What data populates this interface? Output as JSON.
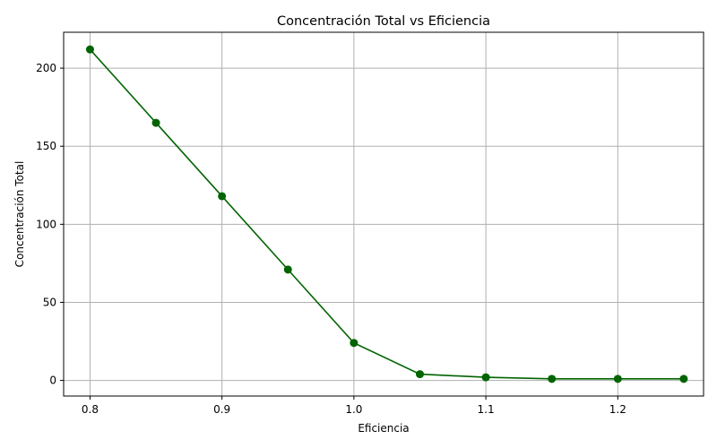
{
  "chart_data": {
    "type": "line",
    "title": "Concentración Total vs Eficiencia",
    "xlabel": "Eficiencia",
    "ylabel": "Concentración Total",
    "xlim": [
      0.78,
      1.265
    ],
    "ylim": [
      -10,
      223
    ],
    "xticks": [
      0.8,
      0.9,
      1.0,
      1.1,
      1.2
    ],
    "xtick_labels": [
      "0.8",
      "0.9",
      "1.0",
      "1.1",
      "1.2"
    ],
    "yticks": [
      0,
      50,
      100,
      150,
      200
    ],
    "ytick_labels": [
      "0",
      "50",
      "100",
      "150",
      "200"
    ],
    "grid": true,
    "series": [
      {
        "color": "#006400",
        "marker": "circle",
        "x": [
          0.8,
          0.85,
          0.9,
          0.95,
          1.0,
          1.05,
          1.1,
          1.15,
          1.2,
          1.25
        ],
        "y": [
          212,
          165,
          118,
          71,
          24,
          4,
          2,
          1,
          1,
          1
        ]
      }
    ]
  }
}
